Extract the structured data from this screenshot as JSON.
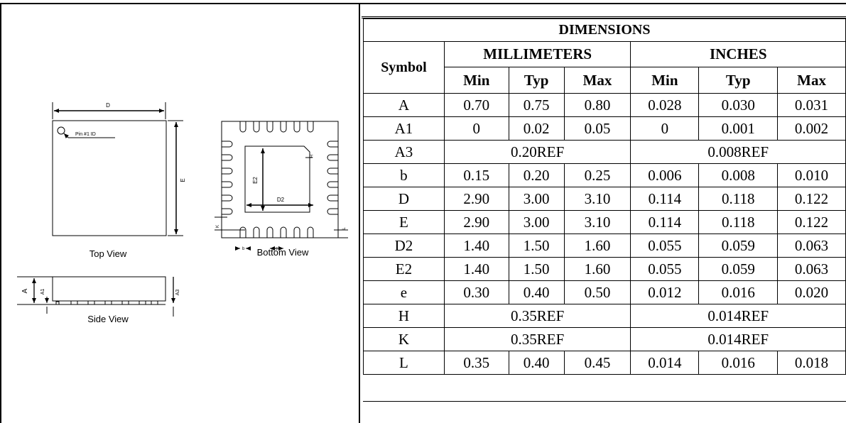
{
  "drawing": {
    "dimension_labels": [
      "D",
      "E",
      "D2",
      "E2",
      "H",
      "K",
      "L",
      "b",
      "e",
      "A",
      "A1",
      "A3"
    ],
    "pin_label": "Pin #1 ID",
    "top_view_label": "Top View",
    "bottom_view_label": "Bottom View",
    "side_view_label": "Side View"
  },
  "table": {
    "title": "DIMENSIONS",
    "symbol_header": "Symbol",
    "group_mm": "MILLIMETERS",
    "group_in": "INCHES",
    "sub_headers": [
      "Min",
      "Typ",
      "Max",
      "Min",
      "Typ",
      "Max"
    ],
    "rows": [
      {
        "symbol": "A",
        "values": [
          "0.70",
          "0.75",
          "0.80",
          "0.028",
          "0.030",
          "0.031"
        ]
      },
      {
        "symbol": "A1",
        "values": [
          "0",
          "0.02",
          "0.05",
          "0",
          "0.001",
          "0.002"
        ]
      },
      {
        "symbol": "A3",
        "mm_ref": "0.20REF",
        "in_ref": "0.008REF"
      },
      {
        "symbol": "b",
        "values": [
          "0.15",
          "0.20",
          "0.25",
          "0.006",
          "0.008",
          "0.010"
        ]
      },
      {
        "symbol": "D",
        "values": [
          "2.90",
          "3.00",
          "3.10",
          "0.114",
          "0.118",
          "0.122"
        ]
      },
      {
        "symbol": "E",
        "values": [
          "2.90",
          "3.00",
          "3.10",
          "0.114",
          "0.118",
          "0.122"
        ]
      },
      {
        "symbol": "D2",
        "values": [
          "1.40",
          "1.50",
          "1.60",
          "0.055",
          "0.059",
          "0.063"
        ]
      },
      {
        "symbol": "E2",
        "values": [
          "1.40",
          "1.50",
          "1.60",
          "0.055",
          "0.059",
          "0.063"
        ]
      },
      {
        "symbol": "e",
        "values": [
          "0.30",
          "0.40",
          "0.50",
          "0.012",
          "0.016",
          "0.020"
        ]
      },
      {
        "symbol": "H",
        "mm_ref": "0.35REF",
        "in_ref": "0.014REF"
      },
      {
        "symbol": "K",
        "mm_ref": "0.35REF",
        "in_ref": "0.014REF"
      },
      {
        "symbol": "L",
        "values": [
          "0.35",
          "0.40",
          "0.45",
          "0.014",
          "0.016",
          "0.018"
        ]
      }
    ]
  }
}
